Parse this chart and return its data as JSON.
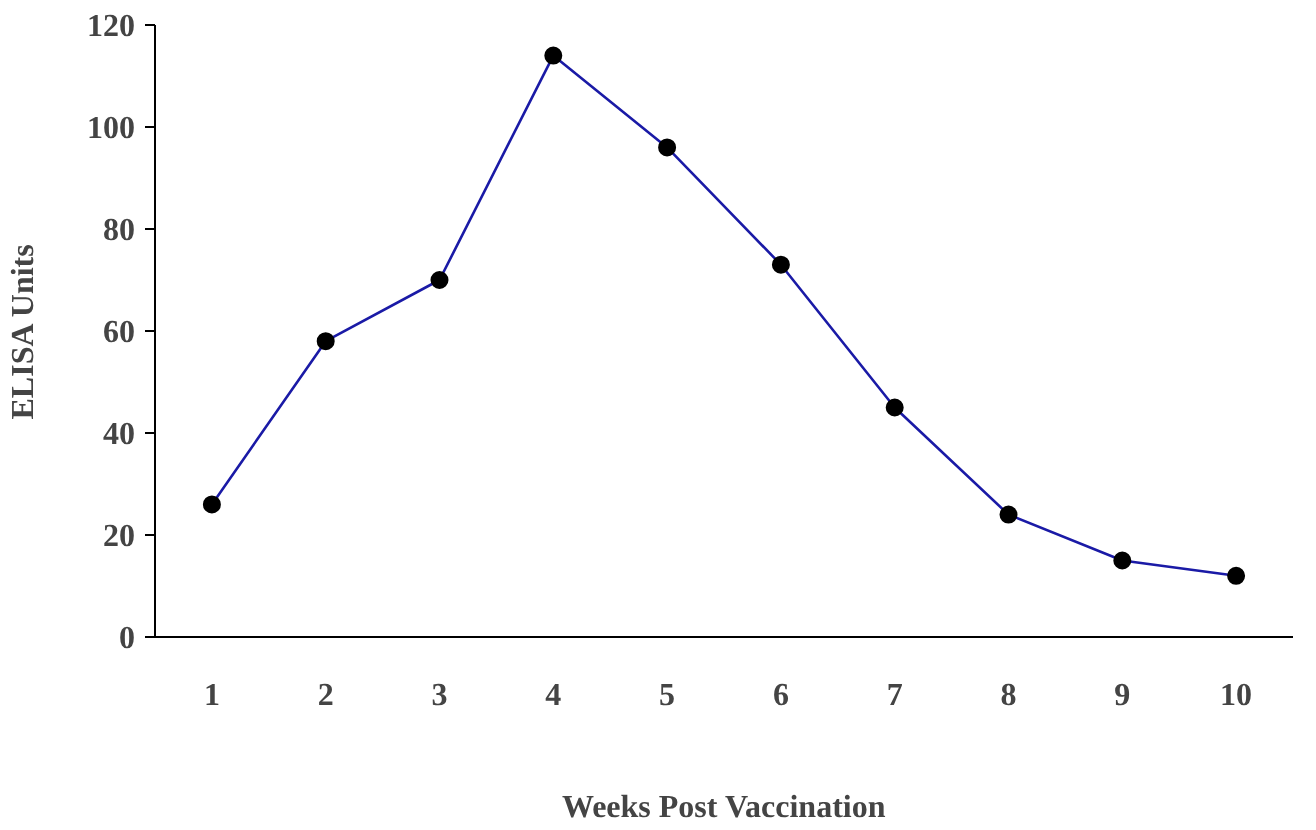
{
  "chart_data": {
    "type": "line",
    "xlabel": "Weeks Post Vaccination",
    "ylabel": "ELISA Units",
    "categories": [
      "1",
      "2",
      "3",
      "4",
      "5",
      "6",
      "7",
      "8",
      "9",
      "10"
    ],
    "series": [
      {
        "color": "#1a1aa6",
        "colors": [
          "#000000",
          "#000000",
          "#000000",
          "#000000",
          "#000000",
          "#000000",
          "#000000",
          "#000000",
          "#000000",
          "#000000"
        ],
        "values": [
          26,
          58,
          70,
          114,
          96,
          73,
          45,
          24,
          15,
          12
        ]
      }
    ],
    "ylim": [
      0,
      120
    ],
    "yticks": [
      0,
      20,
      40,
      60,
      80,
      100,
      120
    ],
    "grid": false,
    "marker": "circle",
    "line_style": "solid"
  }
}
